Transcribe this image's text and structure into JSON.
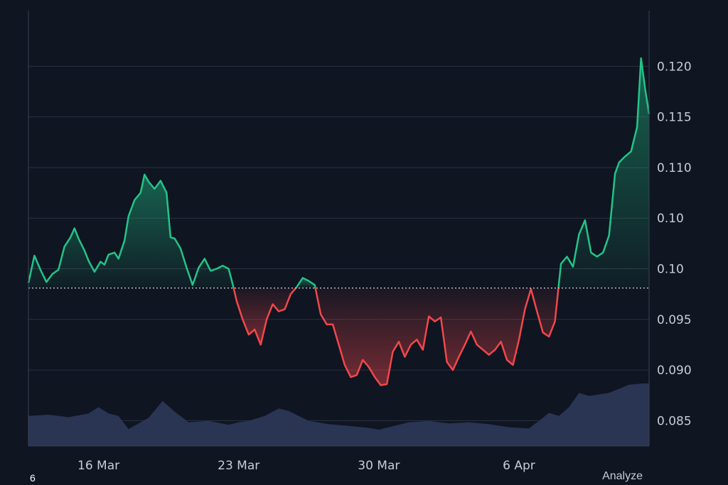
{
  "chart_data": {
    "type": "area",
    "baseline": 0.0981,
    "y_ticks": [
      {
        "value": 0.12,
        "label": "0.120"
      },
      {
        "value": 0.115,
        "label": "0.115"
      },
      {
        "value": 0.11,
        "label": "0.110"
      },
      {
        "value": 0.105,
        "label": "0.10"
      },
      {
        "value": 0.1,
        "label": "0.10"
      },
      {
        "value": 0.095,
        "label": "0.095"
      },
      {
        "value": 0.09,
        "label": "0.090"
      },
      {
        "value": 0.085,
        "label": "0.085"
      }
    ],
    "ylim": [
      0.0825,
      0.1255
    ],
    "x_ticks": [
      {
        "day": 3.5,
        "label": "16 Mar"
      },
      {
        "day": 10.5,
        "label": "23 Mar"
      },
      {
        "day": 17.5,
        "label": "30 Mar"
      },
      {
        "day": 24.5,
        "label": "6 Apr"
      }
    ],
    "xlim": [
      0,
      31
    ],
    "price": [
      [
        0.0,
        0.0986
      ],
      [
        0.3,
        0.1013
      ],
      [
        0.6,
        0.0999
      ],
      [
        0.9,
        0.0987
      ],
      [
        1.2,
        0.0995
      ],
      [
        1.5,
        0.0999
      ],
      [
        1.8,
        0.1022
      ],
      [
        2.1,
        0.1031
      ],
      [
        2.3,
        0.104
      ],
      [
        2.5,
        0.103
      ],
      [
        2.8,
        0.1018
      ],
      [
        3.0,
        0.1008
      ],
      [
        3.3,
        0.0997
      ],
      [
        3.6,
        0.1007
      ],
      [
        3.8,
        0.1004
      ],
      [
        4.0,
        0.1014
      ],
      [
        4.3,
        0.1016
      ],
      [
        4.5,
        0.101
      ],
      [
        4.8,
        0.1028
      ],
      [
        5.0,
        0.1052
      ],
      [
        5.3,
        0.1068
      ],
      [
        5.6,
        0.1075
      ],
      [
        5.8,
        0.1093
      ],
      [
        6.0,
        0.1086
      ],
      [
        6.3,
        0.1079
      ],
      [
        6.6,
        0.1087
      ],
      [
        6.9,
        0.1075
      ],
      [
        7.1,
        0.1031
      ],
      [
        7.3,
        0.103
      ],
      [
        7.6,
        0.102
      ],
      [
        7.9,
        0.1001
      ],
      [
        8.2,
        0.0984
      ],
      [
        8.5,
        0.1001
      ],
      [
        8.8,
        0.101
      ],
      [
        9.1,
        0.0998
      ],
      [
        9.4,
        0.1
      ],
      [
        9.7,
        0.1003
      ],
      [
        10.0,
        0.1
      ],
      [
        10.2,
        0.0985
      ],
      [
        10.4,
        0.0968
      ],
      [
        10.7,
        0.095
      ],
      [
        11.0,
        0.0935
      ],
      [
        11.3,
        0.094
      ],
      [
        11.6,
        0.0925
      ],
      [
        11.9,
        0.095
      ],
      [
        12.2,
        0.0965
      ],
      [
        12.5,
        0.0958
      ],
      [
        12.8,
        0.096
      ],
      [
        13.1,
        0.0975
      ],
      [
        13.4,
        0.0982
      ],
      [
        13.7,
        0.0991
      ],
      [
        14.0,
        0.0988
      ],
      [
        14.3,
        0.0984
      ],
      [
        14.6,
        0.0955
      ],
      [
        14.9,
        0.0945
      ],
      [
        15.2,
        0.0945
      ],
      [
        15.5,
        0.0925
      ],
      [
        15.8,
        0.0905
      ],
      [
        16.1,
        0.0893
      ],
      [
        16.4,
        0.0895
      ],
      [
        16.7,
        0.091
      ],
      [
        17.0,
        0.0903
      ],
      [
        17.3,
        0.0893
      ],
      [
        17.6,
        0.0885
      ],
      [
        17.9,
        0.0886
      ],
      [
        18.2,
        0.0918
      ],
      [
        18.5,
        0.0928
      ],
      [
        18.8,
        0.0913
      ],
      [
        19.1,
        0.0925
      ],
      [
        19.4,
        0.093
      ],
      [
        19.7,
        0.092
      ],
      [
        20.0,
        0.0953
      ],
      [
        20.3,
        0.0948
      ],
      [
        20.6,
        0.0952
      ],
      [
        20.9,
        0.0908
      ],
      [
        21.2,
        0.09
      ],
      [
        21.5,
        0.0913
      ],
      [
        21.8,
        0.0925
      ],
      [
        22.1,
        0.0938
      ],
      [
        22.4,
        0.0925
      ],
      [
        22.7,
        0.092
      ],
      [
        23.0,
        0.0915
      ],
      [
        23.3,
        0.092
      ],
      [
        23.6,
        0.0928
      ],
      [
        23.9,
        0.091
      ],
      [
        24.2,
        0.0905
      ],
      [
        24.5,
        0.093
      ],
      [
        24.8,
        0.096
      ],
      [
        25.1,
        0.098
      ],
      [
        25.4,
        0.0958
      ],
      [
        25.7,
        0.0937
      ],
      [
        26.0,
        0.0933
      ],
      [
        26.3,
        0.0948
      ],
      [
        26.6,
        0.1005
      ],
      [
        26.9,
        0.1012
      ],
      [
        27.2,
        0.1002
      ],
      [
        27.5,
        0.1034
      ],
      [
        27.8,
        0.1048
      ],
      [
        28.1,
        0.1016
      ],
      [
        28.4,
        0.1012
      ],
      [
        28.7,
        0.1016
      ],
      [
        29.0,
        0.1033
      ],
      [
        29.3,
        0.1094
      ],
      [
        29.5,
        0.1105
      ],
      [
        29.8,
        0.1111
      ],
      [
        30.1,
        0.1116
      ],
      [
        30.4,
        0.114
      ],
      [
        30.6,
        0.1208
      ],
      [
        30.8,
        0.1178
      ],
      [
        31.0,
        0.1153
      ]
    ],
    "volume": [
      [
        0.0,
        0.48
      ],
      [
        1.0,
        0.5
      ],
      [
        2.0,
        0.46
      ],
      [
        3.0,
        0.52
      ],
      [
        3.5,
        0.62
      ],
      [
        4.0,
        0.52
      ],
      [
        4.5,
        0.48
      ],
      [
        5.0,
        0.27
      ],
      [
        6.0,
        0.45
      ],
      [
        6.7,
        0.72
      ],
      [
        7.3,
        0.55
      ],
      [
        8.0,
        0.38
      ],
      [
        9.0,
        0.4
      ],
      [
        10.0,
        0.34
      ],
      [
        10.5,
        0.38
      ],
      [
        11.0,
        0.4
      ],
      [
        11.8,
        0.48
      ],
      [
        12.5,
        0.6
      ],
      [
        13.0,
        0.56
      ],
      [
        14.0,
        0.4
      ],
      [
        15.0,
        0.35
      ],
      [
        16.0,
        0.32
      ],
      [
        17.0,
        0.29
      ],
      [
        17.5,
        0.26
      ],
      [
        18.0,
        0.3
      ],
      [
        19.0,
        0.38
      ],
      [
        20.0,
        0.4
      ],
      [
        21.0,
        0.36
      ],
      [
        22.0,
        0.38
      ],
      [
        23.0,
        0.35
      ],
      [
        24.0,
        0.3
      ],
      [
        25.0,
        0.28
      ],
      [
        25.5,
        0.4
      ],
      [
        26.0,
        0.53
      ],
      [
        26.5,
        0.48
      ],
      [
        27.0,
        0.62
      ],
      [
        27.5,
        0.85
      ],
      [
        28.0,
        0.8
      ],
      [
        29.0,
        0.85
      ],
      [
        30.0,
        0.98
      ],
      [
        30.7,
        1.0
      ],
      [
        31.0,
        1.0
      ]
    ],
    "colors": {
      "up": "#22c488",
      "down": "#f2474b",
      "volume": "#2c3656",
      "grid": "#2a3242",
      "background": "#0f1521"
    }
  },
  "footer": {
    "left_text": "6",
    "right_text": "Analyze"
  }
}
